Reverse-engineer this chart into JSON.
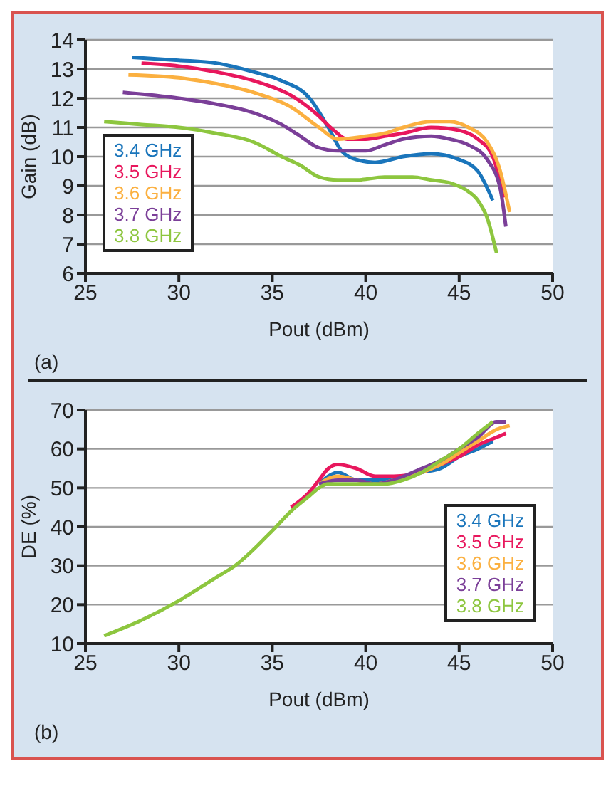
{
  "chart_data": [
    {
      "type": "line",
      "xlabel": "Pout (dBm)",
      "ylabel": "Gain (dB)",
      "xlim": [
        25,
        50
      ],
      "xticks": [
        25,
        30,
        35,
        40,
        45,
        50
      ],
      "ylim": [
        6,
        14
      ],
      "yticks": [
        6,
        7,
        8,
        9,
        10,
        11,
        12,
        13,
        14
      ],
      "grid": "y",
      "legend": "bottom left",
      "marker": "none",
      "line_style": "solid",
      "annotations": [
        "(a)"
      ],
      "series": [
        {
          "name": "3.4 GHz",
          "color": "#1a75bb",
          "x": [
            27.5,
            30,
            32,
            34,
            35.5,
            37,
            38,
            38.7,
            39.5,
            40.5,
            42,
            43.5,
            45,
            46,
            46.8
          ],
          "values": [
            13.4,
            13.3,
            13.2,
            12.9,
            12.6,
            12.0,
            11.0,
            10.2,
            9.9,
            9.8,
            10.0,
            10.1,
            9.9,
            9.5,
            8.5
          ]
        },
        {
          "name": "3.5 GHz",
          "color": "#e8175d",
          "x": [
            28,
            30,
            32,
            34,
            36,
            37.3,
            38.3,
            39,
            40,
            41,
            42,
            43.5,
            45,
            46,
            46.8,
            47.4
          ],
          "values": [
            13.2,
            13.1,
            12.9,
            12.6,
            12.1,
            11.5,
            10.9,
            10.6,
            10.6,
            10.7,
            10.8,
            11.0,
            10.9,
            10.6,
            10.0,
            8.6
          ]
        },
        {
          "name": "3.6 GHz",
          "color": "#fbb040",
          "x": [
            27.3,
            30,
            32,
            34,
            36,
            37.5,
            38.5,
            40,
            41,
            42,
            43.5,
            44.5,
            45.5,
            46.5,
            47.2,
            47.7
          ],
          "values": [
            12.8,
            12.7,
            12.5,
            12.2,
            11.7,
            11.0,
            10.6,
            10.7,
            10.8,
            11.0,
            11.2,
            11.2,
            11.0,
            10.5,
            9.5,
            8.1
          ]
        },
        {
          "name": "3.7 GHz",
          "color": "#7b3f98",
          "x": [
            27,
            30,
            32,
            34,
            35.5,
            36.5,
            37.5,
            38.5,
            40,
            41,
            42,
            43.5,
            44.5,
            45.5,
            46.5,
            47.2,
            47.5
          ],
          "values": [
            12.2,
            12.0,
            11.8,
            11.5,
            11.1,
            10.7,
            10.3,
            10.2,
            10.2,
            10.4,
            10.6,
            10.7,
            10.6,
            10.4,
            9.9,
            8.9,
            7.6
          ]
        },
        {
          "name": "3.8 GHz",
          "color": "#8dc63f",
          "x": [
            26,
            28,
            30,
            32,
            34,
            35.5,
            36.5,
            37.5,
            38.5,
            39.5,
            41,
            42.5,
            43.5,
            44.5,
            45.5,
            46,
            46.5,
            47
          ],
          "values": [
            11.2,
            11.1,
            11.0,
            10.8,
            10.5,
            10.0,
            9.7,
            9.3,
            9.2,
            9.2,
            9.3,
            9.3,
            9.2,
            9.1,
            8.8,
            8.5,
            7.9,
            6.7
          ]
        }
      ]
    },
    {
      "type": "line",
      "xlabel": "Pout (dBm)",
      "ylabel": "DE (%)",
      "xlim": [
        25,
        50
      ],
      "xticks": [
        25,
        30,
        35,
        40,
        45,
        50
      ],
      "ylim": [
        10,
        70
      ],
      "yticks": [
        10,
        20,
        30,
        40,
        50,
        60,
        70
      ],
      "grid": "y",
      "legend": "bottom right",
      "marker": "none",
      "line_style": "solid",
      "annotations": [
        "(b)"
      ],
      "series": [
        {
          "name": "3.4 GHz",
          "color": "#1a75bb",
          "x": [
            37.5,
            38,
            38.5,
            39.5,
            40.5,
            41.5,
            43,
            44,
            45,
            46,
            46.8
          ],
          "values": [
            51,
            53,
            54,
            52,
            52,
            52,
            54,
            55,
            58,
            60,
            62
          ]
        },
        {
          "name": "3.5 GHz",
          "color": "#e8175d",
          "x": [
            36,
            37,
            37.5,
            38,
            38.5,
            39.5,
            40.5,
            41.5,
            43,
            44,
            45,
            46,
            47,
            47.5
          ],
          "values": [
            45,
            49,
            52,
            55,
            56,
            55,
            53,
            53,
            54,
            56,
            58,
            61,
            63,
            64
          ]
        },
        {
          "name": "3.6 GHz",
          "color": "#fbb040",
          "x": [
            37.5,
            38.5,
            39.5,
            40.5,
            41.5,
            43,
            44,
            45,
            46,
            47,
            47.7
          ],
          "values": [
            51,
            53,
            52,
            51,
            52,
            54,
            56,
            59,
            62,
            65,
            66
          ]
        },
        {
          "name": "3.7 GHz",
          "color": "#7b3f98",
          "x": [
            37.5,
            38.5,
            39.5,
            40.5,
            41.5,
            43,
            44,
            45,
            46,
            47,
            47.5
          ],
          "values": [
            51,
            52,
            52,
            51,
            52,
            55,
            57,
            60,
            63,
            67,
            67
          ]
        },
        {
          "name": "3.8 GHz",
          "color": "#8dc63f",
          "x": [
            26,
            28,
            30,
            32,
            33,
            35,
            36,
            37,
            37.5,
            38,
            39.5,
            41,
            42,
            43,
            44,
            45,
            46,
            46.8
          ],
          "values": [
            12,
            16,
            21,
            27,
            30,
            39,
            44,
            48,
            50,
            51,
            51,
            51,
            52,
            54,
            57,
            60,
            64,
            67
          ]
        }
      ]
    }
  ]
}
